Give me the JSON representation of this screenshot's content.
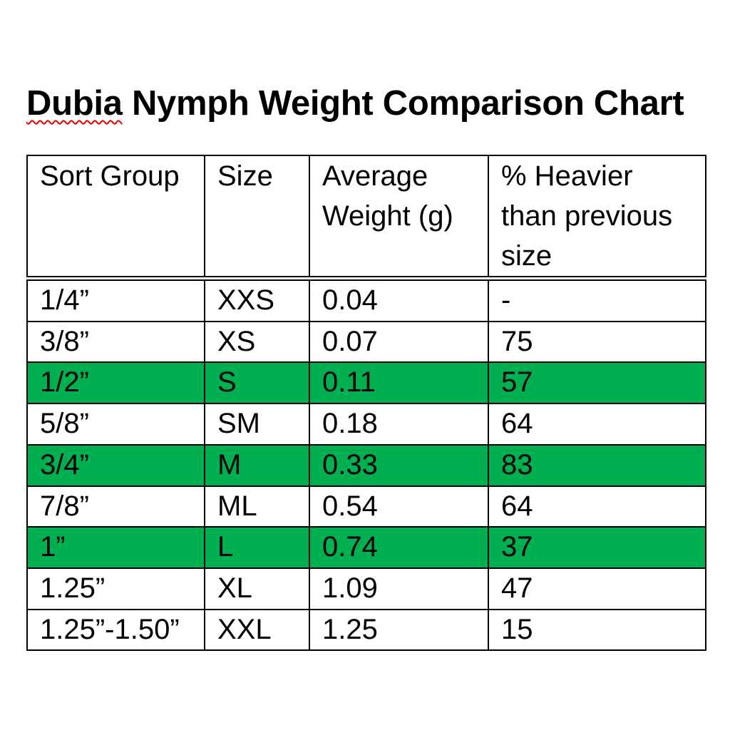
{
  "title": {
    "misspelled_word": "Dubia",
    "rest": " Nymph Weight Comparison Chart"
  },
  "table": {
    "columns": [
      {
        "label": "Sort Group"
      },
      {
        "label": "Size"
      },
      {
        "label": "Average\nWeight (g)"
      },
      {
        "label": "% Heavier\nthan previous\nsize"
      }
    ],
    "rows": [
      {
        "sort_group": "1/4”",
        "size": "XXS",
        "avg_weight": "0.04",
        "pct_heavier": "-",
        "highlighted": false
      },
      {
        "sort_group": "3/8”",
        "size": "XS",
        "avg_weight": "0.07",
        "pct_heavier": "75",
        "highlighted": false
      },
      {
        "sort_group": "1/2”",
        "size": "S",
        "avg_weight": "0.11",
        "pct_heavier": "57",
        "highlighted": true
      },
      {
        "sort_group": "5/8”",
        "size": "SM",
        "avg_weight": "0.18",
        "pct_heavier": "64",
        "highlighted": false
      },
      {
        "sort_group": "3/4”",
        "size": "M",
        "avg_weight": "0.33",
        "pct_heavier": "83",
        "highlighted": true
      },
      {
        "sort_group": "7/8”",
        "size": "ML",
        "avg_weight": "0.54",
        "pct_heavier": "64",
        "highlighted": false
      },
      {
        "sort_group": "1”",
        "size": "L",
        "avg_weight": "0.74",
        "pct_heavier": "37",
        "highlighted": true
      },
      {
        "sort_group": "1.25”",
        "size": "XL",
        "avg_weight": "1.09",
        "pct_heavier": "47",
        "highlighted": false
      },
      {
        "sort_group": "1.25”-1.50”",
        "size": "XXL",
        "avg_weight": "1.25",
        "pct_heavier": "15",
        "highlighted": false
      }
    ]
  },
  "colors": {
    "highlight_green": "#00B050",
    "squiggle_red": "#E60000",
    "border_black": "#000000"
  },
  "chart_data": {
    "type": "table",
    "title": "Dubia Nymph Weight Comparison Chart",
    "columns": [
      "Sort Group",
      "Size",
      "Average Weight (g)",
      "% Heavier than previous size"
    ],
    "rows": [
      [
        "1/4”",
        "XXS",
        0.04,
        null
      ],
      [
        "3/8”",
        "XS",
        0.07,
        75
      ],
      [
        "1/2”",
        "S",
        0.11,
        57
      ],
      [
        "5/8”",
        "SM",
        0.18,
        64
      ],
      [
        "3/4”",
        "M",
        0.33,
        83
      ],
      [
        "7/8”",
        "ML",
        0.54,
        64
      ],
      [
        "1”",
        "L",
        0.74,
        37
      ],
      [
        "1.25”",
        "XL",
        1.09,
        47
      ],
      [
        "1.25”-1.50”",
        "XXL",
        1.25,
        15
      ]
    ],
    "highlighted_rows": [
      2,
      4,
      6
    ]
  }
}
